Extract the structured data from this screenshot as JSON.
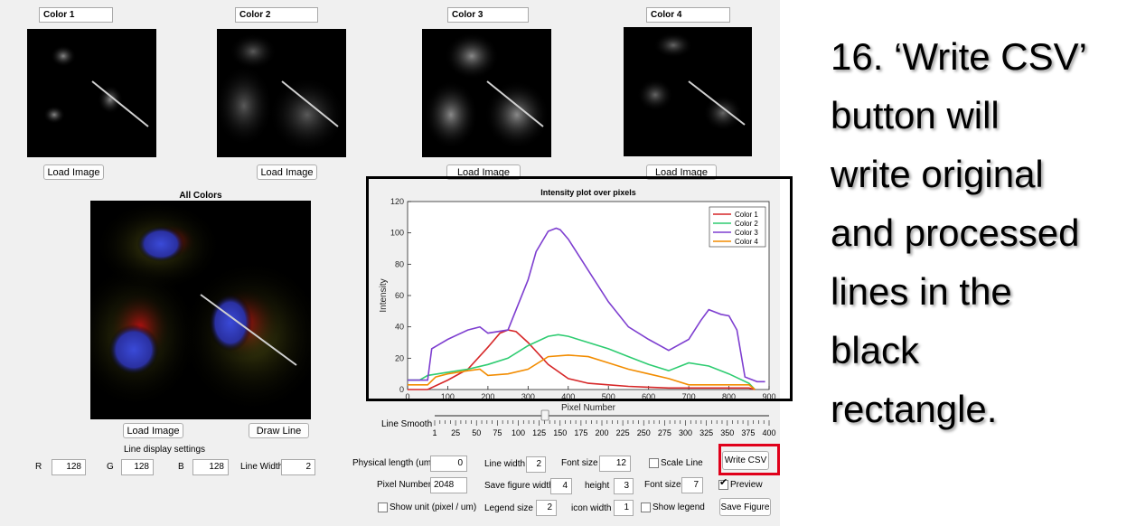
{
  "colors": {
    "red": "#d62728",
    "green": "#2ecc71",
    "purple": "#7e3fd0",
    "orange": "#f28c00",
    "highlight": "#e0001a"
  },
  "channels": [
    {
      "title": "Color 1",
      "load_label": "Load Image"
    },
    {
      "title": "Color 2",
      "load_label": "Load Image"
    },
    {
      "title": "Color 3",
      "load_label": "Load Image"
    },
    {
      "title": "Color 4",
      "load_label": "Load Image"
    }
  ],
  "composite": {
    "title": "All Colors",
    "load_label": "Load Image",
    "draw_label": "Draw Line"
  },
  "display_settings": {
    "title": "Line display settings",
    "r_label": "R",
    "r_value": "128",
    "g_label": "G",
    "g_value": "128",
    "b_label": "B",
    "b_value": "128",
    "width_label": "Line Width",
    "width_value": "2"
  },
  "slider": {
    "label": "Line Smooth",
    "ticks": [
      "1",
      "25",
      "50",
      "75",
      "100",
      "125",
      "150",
      "175",
      "200",
      "225",
      "250",
      "275",
      "300",
      "325",
      "350",
      "375",
      "400"
    ],
    "value": 0.33
  },
  "controls": {
    "physical_length_label": "Physical length (um)",
    "physical_length_value": "0",
    "line_width_label": "Line width",
    "line_width_value": "2",
    "font_size_label": "Font size",
    "font_size_value": "12",
    "scale_line_label": "Scale Line",
    "pixel_number_label": "Pixel Number",
    "pixel_number_value": "2048",
    "save_fig_width_label": "Save figure width",
    "save_fig_width_value": "4",
    "height_label": "height",
    "height_value": "3",
    "font_size2_label": "Font size",
    "font_size2_value": "7",
    "preview_label": "Preview",
    "show_unit_label": "Show unit (pixel / um)",
    "legend_size_label": "Legend size",
    "legend_size_value": "2",
    "icon_width_label": "icon width",
    "icon_width_value": "1",
    "show_legend_label": "Show legend",
    "write_csv_label": "Write CSV",
    "save_figure_label": "Save Figure"
  },
  "instruction": {
    "lines": [
      "16. ‘Write CSV’",
      "button will",
      "write original",
      "and processed",
      "lines in the",
      "black",
      "rectangle."
    ]
  },
  "chart_data": {
    "type": "line",
    "title": "Intensity plot over pixels",
    "xlabel": "Pixel Number",
    "ylabel": "Intensity",
    "xlim": [
      0,
      900
    ],
    "ylim": [
      0,
      120
    ],
    "xticks": [
      0,
      100,
      200,
      300,
      400,
      500,
      600,
      700,
      800,
      900
    ],
    "yticks": [
      0,
      20,
      40,
      60,
      80,
      100,
      120
    ],
    "legend_position": "top-right",
    "series": [
      {
        "name": "Color 1",
        "color": "#d62728",
        "x": [
          0,
          50,
          100,
          150,
          200,
          230,
          250,
          270,
          300,
          350,
          400,
          450,
          500,
          550,
          600,
          650,
          700,
          750,
          800,
          850,
          865
        ],
        "y": [
          0,
          0,
          6,
          13,
          27,
          36,
          38,
          37,
          30,
          16,
          7,
          4,
          3,
          2,
          1.5,
          1,
          1,
          1,
          1,
          1,
          0
        ]
      },
      {
        "name": "Color 2",
        "color": "#2ecc71",
        "x": [
          0,
          10,
          30,
          50,
          100,
          150,
          200,
          250,
          300,
          350,
          375,
          400,
          450,
          500,
          550,
          600,
          650,
          700,
          750,
          800,
          850,
          865
        ],
        "y": [
          6,
          6,
          6,
          9,
          11,
          13,
          16,
          20,
          28,
          34,
          35,
          34,
          30,
          26,
          21,
          16,
          12,
          17,
          15,
          10,
          4,
          0
        ]
      },
      {
        "name": "Color 3",
        "color": "#7e3fd0",
        "x": [
          0,
          50,
          60,
          100,
          150,
          180,
          200,
          250,
          300,
          320,
          350,
          370,
          380,
          400,
          450,
          500,
          550,
          600,
          650,
          700,
          730,
          750,
          780,
          800,
          820,
          840,
          870,
          890
        ],
        "y": [
          6,
          6,
          26,
          32,
          38,
          40,
          36,
          38,
          70,
          88,
          101,
          103,
          102,
          96,
          76,
          56,
          40,
          32,
          25,
          32,
          44,
          51,
          48,
          47,
          38,
          8,
          5,
          5
        ]
      },
      {
        "name": "Color 4",
        "color": "#f28c00",
        "x": [
          0,
          50,
          70,
          100,
          150,
          180,
          200,
          250,
          300,
          350,
          400,
          450,
          500,
          550,
          600,
          650,
          700,
          750,
          800,
          850,
          865
        ],
        "y": [
          3,
          3,
          8,
          10,
          12,
          13,
          9,
          10,
          13,
          21,
          22,
          21,
          17,
          13,
          10,
          7,
          3,
          3,
          3,
          3,
          0
        ]
      }
    ]
  }
}
